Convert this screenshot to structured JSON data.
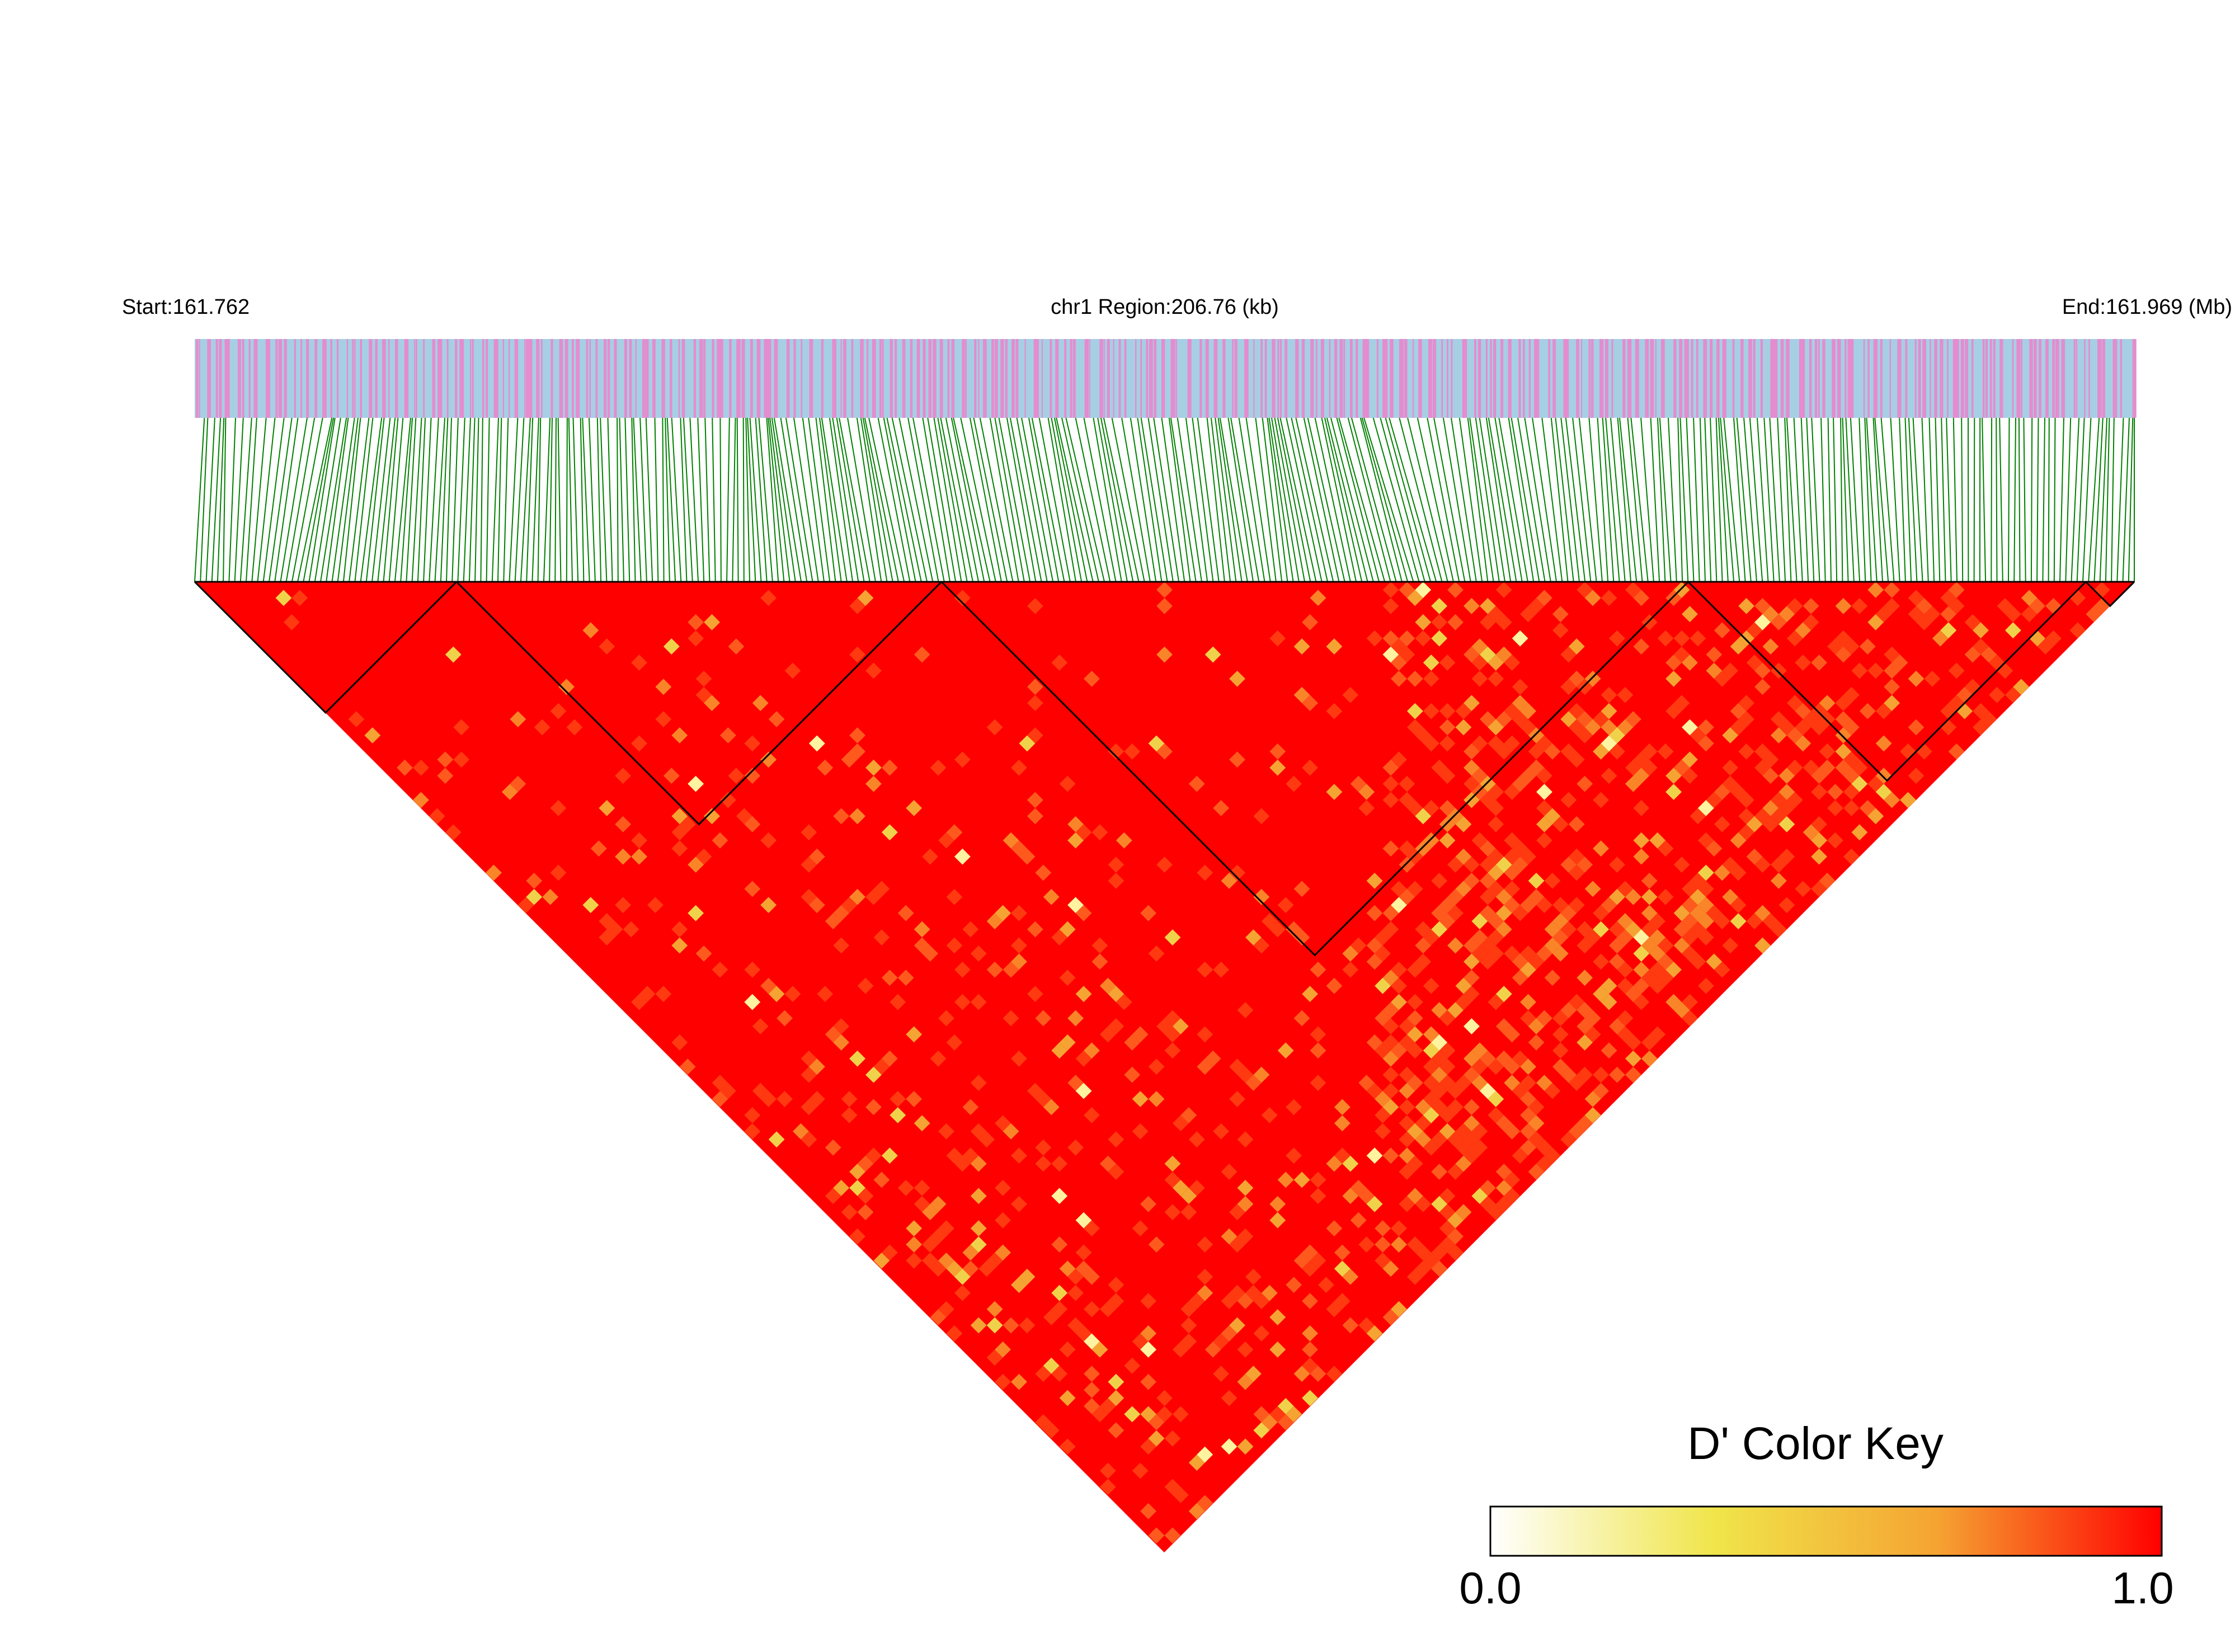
{
  "chart_data": {
    "type": "heatmap",
    "subtype": "linkage-disequilibrium-triangle",
    "header": {
      "start_label": "Start:161.762",
      "region_label": "chr1 Region:206.76 (kb)",
      "end_label": "End:161.969 (Mb)"
    },
    "region": {
      "chromosome": "chr1",
      "start_mb": 161.762,
      "end_mb": 161.969,
      "length_kb": 206.76
    },
    "snp_track": {
      "base_color": "#a6cfe3",
      "snp_color": "#e48ccf",
      "connector_color": "#008000"
    },
    "blocks_fraction": [
      [
        0.0,
        0.135
      ],
      [
        0.135,
        0.385
      ],
      [
        0.385,
        0.77
      ],
      [
        0.77,
        0.975
      ],
      [
        0.975,
        1.0
      ]
    ],
    "color_key": {
      "title": "D' Color Key",
      "min_label": "0.0",
      "max_label": "1.0",
      "min": 0.0,
      "max": 1.0,
      "colors": [
        "#ffffff",
        "#f0e54a",
        "#f5a332",
        "#ff0000"
      ]
    }
  }
}
